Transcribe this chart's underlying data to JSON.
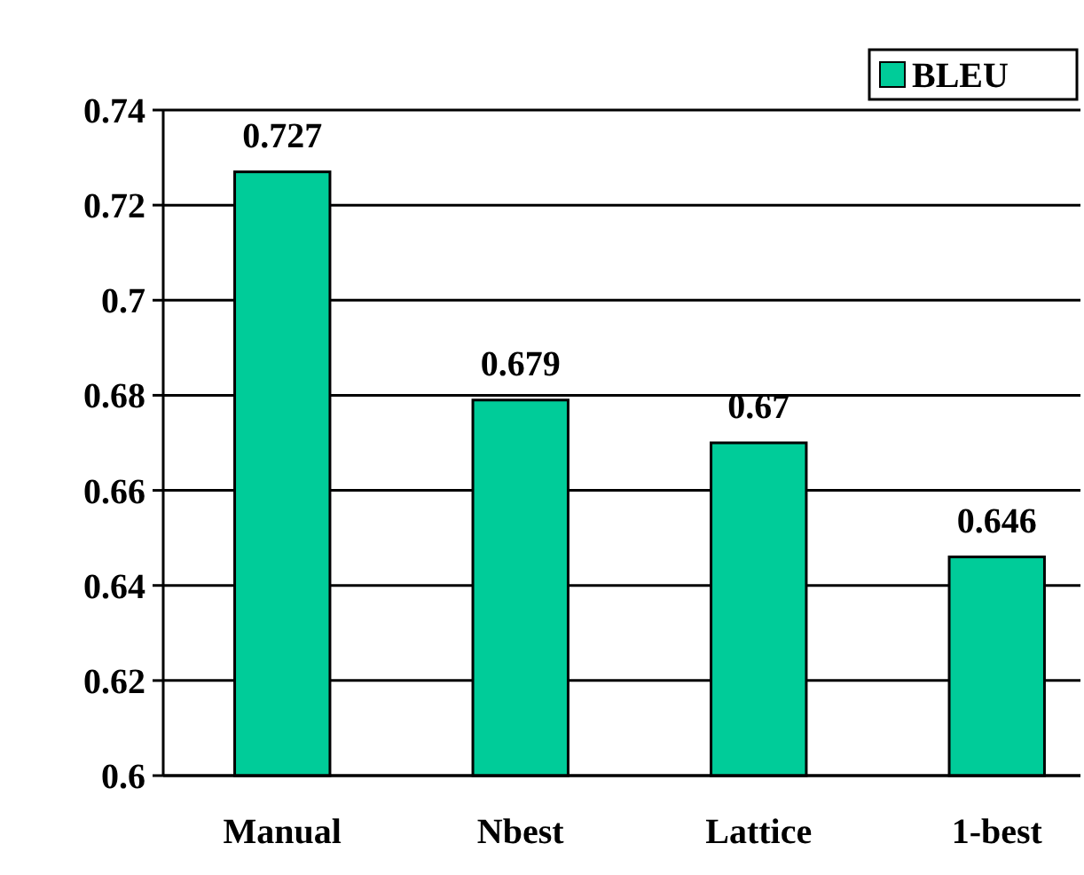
{
  "chart_data": {
    "type": "bar",
    "categories": [
      "Manual",
      "Nbest",
      "Lattice",
      "1-best"
    ],
    "series": [
      {
        "name": "BLEU",
        "color": "#00cc99",
        "values": [
          0.727,
          0.679,
          0.67,
          0.646
        ]
      }
    ],
    "ylim": [
      0.6,
      0.74
    ],
    "yticks": [
      0.6,
      0.62,
      0.64,
      0.66,
      0.68,
      0.7,
      0.72,
      0.74
    ],
    "grid": "y",
    "legend": "top right",
    "data_labels": true
  }
}
